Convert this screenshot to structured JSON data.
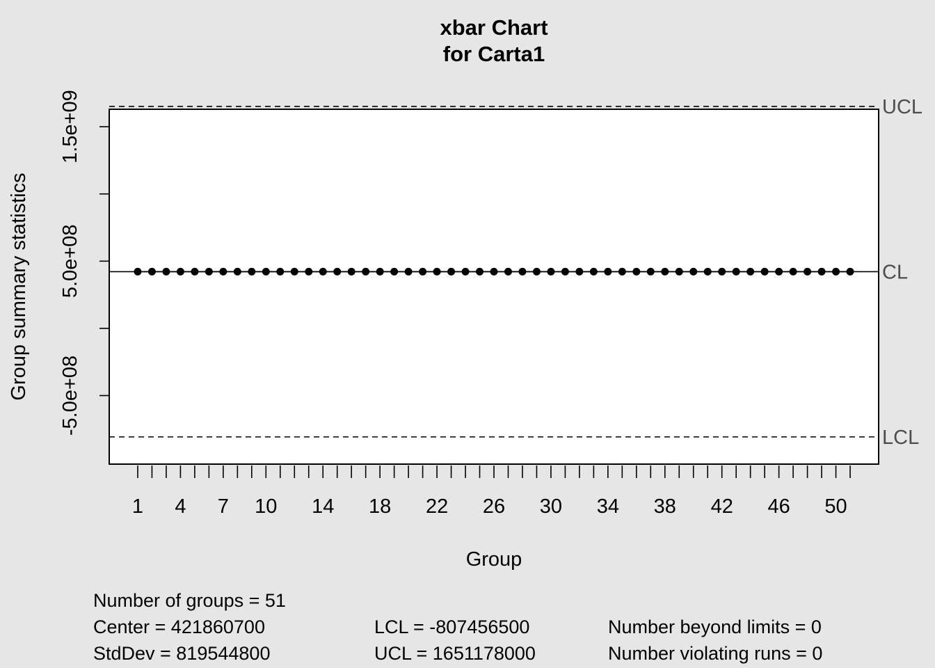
{
  "chart_data": {
    "type": "line",
    "title": "xbar Chart",
    "subtitle": "for Carta1",
    "xlabel": "Group",
    "ylabel": "Group summary statistics",
    "x_start": 1,
    "x_end": 51,
    "xlim": [
      -1,
      53
    ],
    "ylim": [
      -1010000000,
      1630000000
    ],
    "x_tick_labels": [
      1,
      4,
      7,
      10,
      14,
      18,
      22,
      26,
      30,
      34,
      38,
      42,
      46,
      50
    ],
    "y_ticks": [
      -500000000,
      0,
      500000000,
      1000000000,
      1500000000
    ],
    "y_tick_labels": [
      "-5.0e+08",
      "",
      "5.0e+08",
      "",
      "1.5e+09"
    ],
    "center": 421860700,
    "lcl": -807456500,
    "ucl": 1651178000,
    "values": [
      421860700,
      421860700,
      421860700,
      421860700,
      421860700,
      421860700,
      421860700,
      421860700,
      421860700,
      421860700,
      421860700,
      421860700,
      421860700,
      421860700,
      421860700,
      421860700,
      421860700,
      421860700,
      421860700,
      421860700,
      421860700,
      421860700,
      421860700,
      421860700,
      421860700,
      421860700,
      421860700,
      421860700,
      421860700,
      421860700,
      421860700,
      421860700,
      421860700,
      421860700,
      421860700,
      421860700,
      421860700,
      421860700,
      421860700,
      421860700,
      421860700,
      421860700,
      421860700,
      421860700,
      421860700,
      421860700,
      421860700,
      421860700,
      421860700,
      421860700,
      421860700
    ],
    "limit_labels": {
      "ucl": "UCL",
      "cl": "CL",
      "lcl": "LCL"
    }
  },
  "stats": {
    "groups": "Number of groups = 51",
    "center": "Center = 421860700",
    "stddev": "StdDev = 819544800",
    "lcl": "LCL = -807456500",
    "ucl": "UCL = 1651178000",
    "beyond": "Number beyond limits = 0",
    "runs": "Number violating runs = 0"
  }
}
